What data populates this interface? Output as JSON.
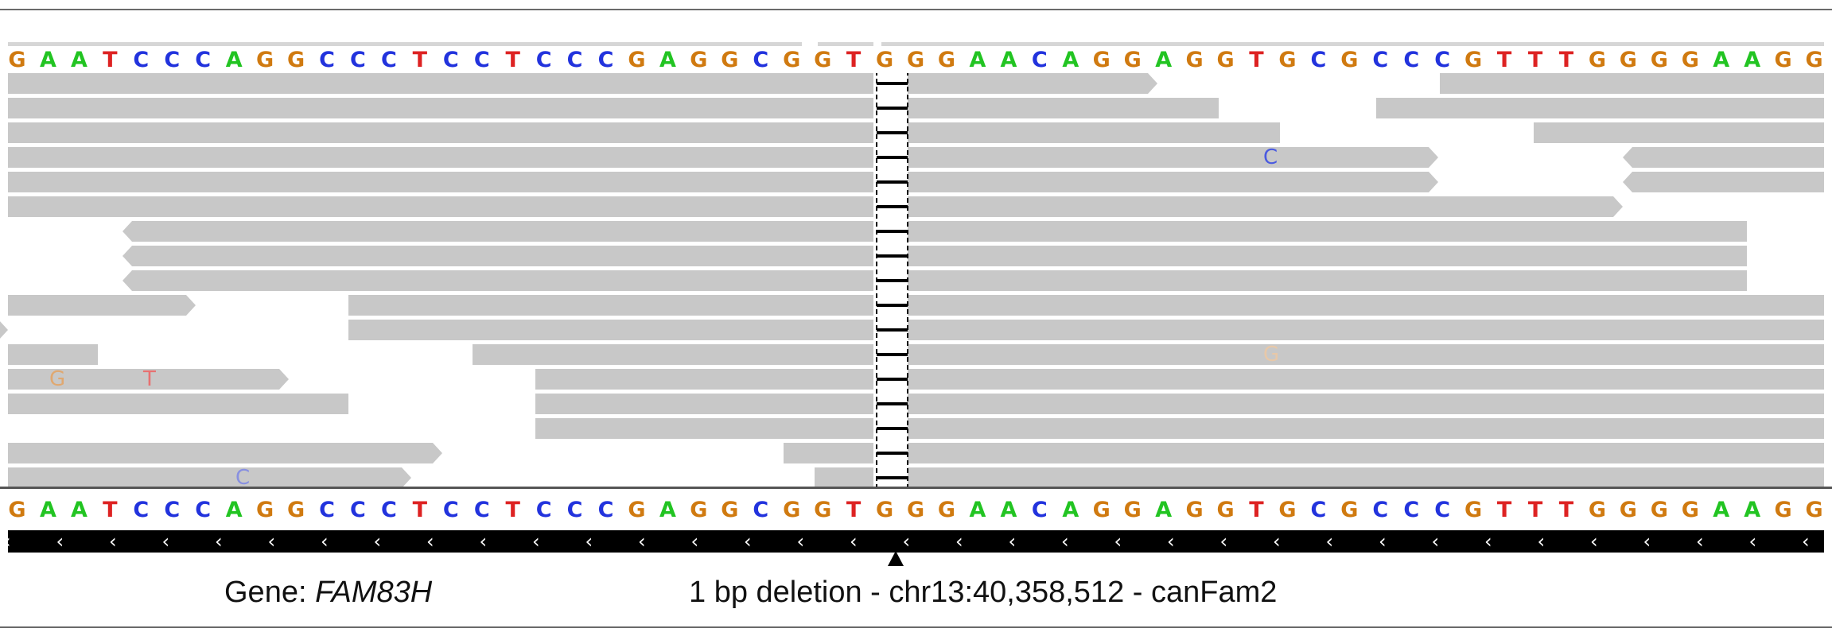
{
  "reference_sequence": "GAATCCCAGGCCCTCCTCCCGAGGCGGTGGGAACAGGAGGTGCGCCCGTTTGGGGAAGG",
  "base_colors": {
    "A": "#22c422",
    "C": "#2233dd",
    "G": "#d07a10",
    "T": "#dd2222"
  },
  "mismatches": [
    {
      "row": 3,
      "base": "C",
      "color": "#4a5ae0"
    },
    {
      "row": 11,
      "base": "G",
      "color": "#e8c8a8"
    },
    {
      "row": 12,
      "base": "G",
      "color": "#e0a870"
    },
    {
      "row": 12,
      "base": "T",
      "color": "#e87070"
    },
    {
      "row": 16,
      "base": "C",
      "color": "#8890e0"
    }
  ],
  "deletion": {
    "length_bp": 1
  },
  "gene": {
    "label": "Gene: ",
    "name": "FAM83H",
    "strand": "minus"
  },
  "caption": "1 bp deletion - chr13:40,358,512 - canFam2"
}
